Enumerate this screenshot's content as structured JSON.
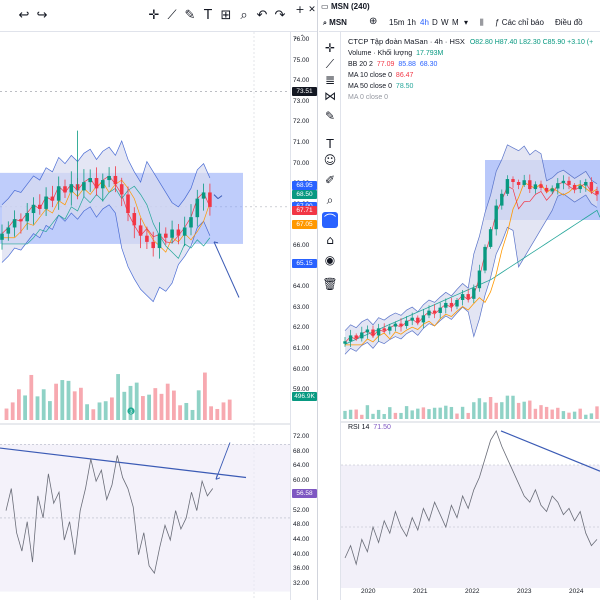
{
  "left": {
    "price_axis": [
      "76.00",
      "75.00",
      "74.00",
      "73.00",
      "72.00",
      "71.00",
      "70.00",
      "69.00",
      "68.00",
      "67.00",
      "66.00",
      "65.00",
      "64.00",
      "63.00",
      "62.00",
      "61.00",
      "60.00",
      "59.00"
    ],
    "price_badges": [
      {
        "text": "73.51",
        "color": "#131722"
      },
      {
        "text": "68.95",
        "color": "#2962ff"
      },
      {
        "text": "68.50",
        "color": "#089981"
      },
      {
        "text": "67.90",
        "color": "#2962ff"
      },
      {
        "text": "67.71",
        "color": "#f23645"
      },
      {
        "text": "67.05",
        "color": "#ff9800"
      },
      {
        "text": "65.15",
        "color": "#2962ff"
      }
    ],
    "volume_badge": "496.9K",
    "rsi_axis": [
      "72.00",
      "68.00",
      "64.00",
      "60.00",
      "56.00",
      "52.00",
      "48.00",
      "44.00",
      "40.00",
      "36.00",
      "32.00"
    ],
    "rsi_badge": "56.58",
    "marker": "3",
    "toolbar_icons": [
      "crosshair-icon",
      "trend-line-icon",
      "brush-icon",
      "text-icon",
      "measure-icon",
      "zoom-icon",
      "undo-icon",
      "redo-icon",
      "magnet-icon",
      "lock-icon",
      "screenshot-icon",
      "expand-icon"
    ]
  },
  "right": {
    "window_title": "MSN (240)",
    "symbol": "MSN",
    "intervals": [
      "15m",
      "1h",
      "4h",
      "D",
      "W",
      "M"
    ],
    "active_interval": "4h",
    "indicators_label": "Các chỉ báo",
    "layout_label": "Điều đồ",
    "legend": {
      "title": "CTCP Tập đoàn MaSan · 4h · HSX",
      "ohlc": "O82.80 H87.40 L82.30 C85.90 +3.10 (+",
      "volume_label": "Volume · Khối lượng",
      "volume_value": "17.793M",
      "bb_label": "BB 20 2",
      "bb_values": [
        "77.09",
        "85.88",
        "68.30"
      ],
      "ma10_label": "MA 10 close 0",
      "ma10_value": "86.47",
      "ma50_label": "MA 50 close 0",
      "ma50_value": "78.50",
      "ma_hidden": "MA 0 close 0"
    },
    "rsi_label": "RSI 14",
    "rsi_value": "71.50",
    "footer_dates": [
      "2020",
      "2021",
      "2022",
      "2023",
      "2024"
    ],
    "sidebar_icons": [
      "crosshair-icon",
      "trend-line-icon",
      "fib-icon",
      "pattern-icon",
      "brush-icon",
      "text-icon",
      "emoji-icon",
      "ruler-icon",
      "zoom-in-icon",
      "magnet-icon",
      "lock-icon",
      "eye-icon",
      "trash-icon"
    ],
    "active_sidebar": 9
  },
  "colors": {
    "up": "#089981",
    "down": "#f23645",
    "vol_up": "#8fd2c6",
    "vol_down": "#f7a9b0",
    "band_fill": "#d9dcef",
    "zone": "#8aa4f7",
    "trend": "#3b5bb5",
    "ma_orange": "#ff9800",
    "ma_teal": "#26a69a",
    "rsi_fill": "#ece9f7"
  }
}
